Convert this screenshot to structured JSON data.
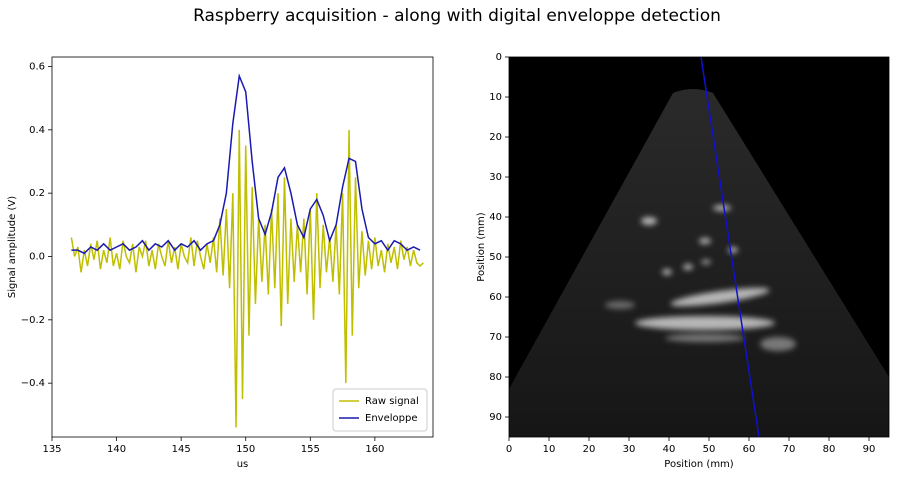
{
  "title": "Raspberry acquisition - along with digital enveloppe detection",
  "chart_data": [
    {
      "type": "line",
      "xlabel": "us",
      "ylabel": "Signal amplitude (V)",
      "xlim": [
        135,
        164.5
      ],
      "xticks": [
        135,
        140,
        145,
        150,
        155,
        160
      ],
      "ylim": [
        -0.57,
        0.63
      ],
      "yticks": [
        {
          "value": -0.4,
          "label": "−0.4"
        },
        {
          "value": -0.2,
          "label": "−0.2"
        },
        {
          "value": 0,
          "label": "0.0"
        },
        0.2,
        0.4,
        0.6
      ],
      "legend": "lower right",
      "series": [
        {
          "name": "Raw signal",
          "color": "#bfbf00",
          "x": [
            136.5,
            136.75,
            137,
            137.25,
            137.5,
            137.75,
            138,
            138.25,
            138.5,
            138.75,
            139,
            139.25,
            139.5,
            139.75,
            140,
            140.25,
            140.5,
            140.75,
            141,
            141.25,
            141.5,
            141.75,
            142,
            142.25,
            142.5,
            142.75,
            143,
            143.25,
            143.5,
            143.75,
            144,
            144.25,
            144.5,
            144.75,
            145,
            145.25,
            145.5,
            145.75,
            146,
            146.25,
            146.5,
            146.75,
            147,
            147.25,
            147.5,
            147.75,
            148,
            148.25,
            148.5,
            148.75,
            149,
            149.25,
            149.5,
            149.75,
            150,
            150.25,
            150.5,
            150.75,
            151,
            151.25,
            151.5,
            151.75,
            152,
            152.25,
            152.5,
            152.75,
            153,
            153.25,
            153.5,
            153.75,
            154,
            154.25,
            154.5,
            154.75,
            155,
            155.25,
            155.5,
            155.75,
            156,
            156.25,
            156.5,
            156.75,
            157,
            157.25,
            157.5,
            157.75,
            158,
            158.25,
            158.5,
            158.75,
            159,
            159.25,
            159.5,
            159.75,
            160,
            160.25,
            160.5,
            160.75,
            161,
            161.25,
            161.5,
            161.75,
            162,
            162.25,
            162.5,
            162.75,
            163,
            163.25,
            163.5,
            163.75
          ],
          "values": [
            0.06,
            0.0,
            0.03,
            -0.05,
            0.02,
            -0.03,
            0.04,
            -0.01,
            0.05,
            -0.04,
            0.02,
            -0.02,
            0.06,
            -0.03,
            0.01,
            -0.04,
            0.05,
            0.0,
            -0.02,
            0.04,
            -0.05,
            0.03,
            0.0,
            0.05,
            -0.03,
            0.02,
            -0.04,
            0.04,
            0.0,
            -0.03,
            0.05,
            -0.02,
            0.03,
            -0.04,
            0.04,
            0.0,
            -0.02,
            0.06,
            -0.03,
            0.05,
            0.0,
            -0.04,
            0.04,
            -0.02,
            0.06,
            -0.05,
            0.12,
            -0.06,
            0.15,
            -0.1,
            0.2,
            -0.54,
            0.4,
            -0.45,
            0.35,
            -0.25,
            0.22,
            -0.15,
            0.12,
            -0.08,
            0.1,
            -0.12,
            0.15,
            -0.1,
            0.2,
            -0.22,
            0.25,
            -0.15,
            0.12,
            -0.08,
            0.1,
            -0.05,
            0.12,
            -0.12,
            0.15,
            -0.2,
            0.2,
            -0.1,
            0.1,
            -0.05,
            0.06,
            -0.08,
            0.1,
            -0.12,
            0.2,
            -0.4,
            0.4,
            -0.25,
            0.25,
            -0.1,
            0.08,
            -0.06,
            0.05,
            -0.04,
            0.06,
            -0.03,
            0.02,
            -0.05,
            0.04,
            -0.02,
            0.03,
            -0.04,
            0.05,
            -0.01,
            0.03,
            -0.03,
            0.02,
            -0.02,
            -0.03,
            -0.02
          ]
        },
        {
          "name": "Enveloppe",
          "color": "#1a1ab0",
          "x": [
            136.5,
            137,
            137.5,
            138,
            138.5,
            139,
            139.5,
            140,
            140.5,
            141,
            141.5,
            142,
            142.5,
            143,
            143.5,
            144,
            144.5,
            145,
            145.5,
            146,
            146.5,
            147,
            147.5,
            148,
            148.5,
            149,
            149.5,
            150,
            150.5,
            151,
            151.5,
            152,
            152.5,
            153,
            153.5,
            154,
            154.5,
            155,
            155.5,
            156,
            156.5,
            157,
            157.5,
            158,
            158.5,
            159,
            159.5,
            160,
            160.5,
            161,
            161.5,
            162,
            162.5,
            163,
            163.5
          ],
          "values": [
            0.02,
            0.02,
            0.01,
            0.03,
            0.02,
            0.04,
            0.02,
            0.03,
            0.04,
            0.02,
            0.03,
            0.05,
            0.02,
            0.04,
            0.03,
            0.05,
            0.02,
            0.04,
            0.03,
            0.05,
            0.02,
            0.04,
            0.05,
            0.1,
            0.2,
            0.42,
            0.57,
            0.52,
            0.3,
            0.12,
            0.07,
            0.14,
            0.25,
            0.28,
            0.2,
            0.1,
            0.06,
            0.15,
            0.18,
            0.13,
            0.05,
            0.1,
            0.22,
            0.31,
            0.3,
            0.15,
            0.06,
            0.04,
            0.05,
            0.02,
            0.05,
            0.04,
            0.02,
            0.03,
            0.02
          ]
        }
      ]
    },
    {
      "type": "image",
      "xlabel": "Position (mm)",
      "ylabel": "Position (mm)",
      "xlim": [
        0,
        95
      ],
      "xticks": [
        0,
        10,
        20,
        30,
        40,
        50,
        60,
        70,
        80,
        90
      ],
      "ylim": [
        95,
        0
      ],
      "yticks": [
        0,
        10,
        20,
        30,
        40,
        50,
        60,
        70,
        80,
        90
      ],
      "series": [
        {
          "color": "#1010d0",
          "x": [
            48,
            62.5
          ],
          "values": [
            0,
            95
          ]
        }
      ]
    }
  ]
}
